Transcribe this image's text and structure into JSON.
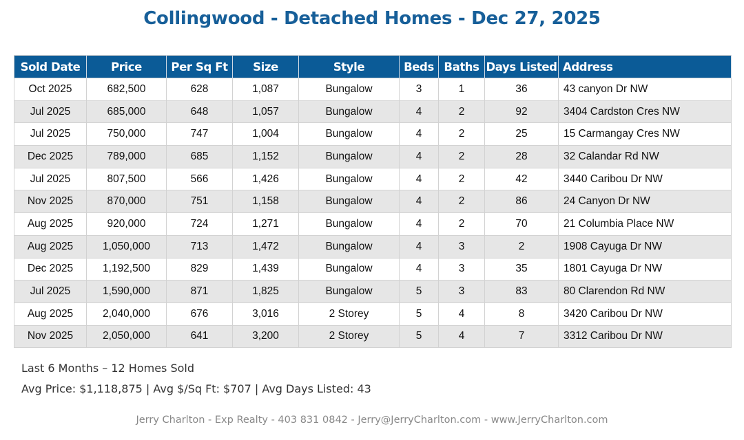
{
  "title": "Collingwood - Detached Homes - Dec 27, 2025",
  "colors": {
    "title": "#175f99",
    "header_bg": "#0b5b97",
    "alt_row": "#e6e6e6"
  },
  "table": {
    "headers": [
      "Sold Date",
      "Price",
      "Per Sq Ft",
      "Size",
      "Style",
      "Beds",
      "Baths",
      "Days Listed",
      "Address"
    ],
    "rows": [
      [
        "Oct 2025",
        "682,500",
        "628",
        "1,087",
        "Bungalow",
        "3",
        "1",
        "36",
        "43 canyon Dr NW"
      ],
      [
        "Jul 2025",
        "685,000",
        "648",
        "1,057",
        "Bungalow",
        "4",
        "2",
        "92",
        "3404 Cardston Cres NW"
      ],
      [
        "Jul 2025",
        "750,000",
        "747",
        "1,004",
        "Bungalow",
        "4",
        "2",
        "25",
        "15 Carmangay Cres NW"
      ],
      [
        "Dec 2025",
        "789,000",
        "685",
        "1,152",
        "Bungalow",
        "4",
        "2",
        "28",
        "32 Calandar Rd NW"
      ],
      [
        "Jul 2025",
        "807,500",
        "566",
        "1,426",
        "Bungalow",
        "4",
        "2",
        "42",
        "3440 Caribou Dr NW"
      ],
      [
        "Nov 2025",
        "870,000",
        "751",
        "1,158",
        "Bungalow",
        "4",
        "2",
        "86",
        "24 Canyon Dr NW"
      ],
      [
        "Aug 2025",
        "920,000",
        "724",
        "1,271",
        "Bungalow",
        "4",
        "2",
        "70",
        "21 Columbia Place NW"
      ],
      [
        "Aug 2025",
        "1,050,000",
        "713",
        "1,472",
        "Bungalow",
        "4",
        "3",
        "2",
        "1908 Cayuga Dr NW"
      ],
      [
        "Dec 2025",
        "1,192,500",
        "829",
        "1,439",
        "Bungalow",
        "4",
        "3",
        "35",
        "1801 Cayuga Dr NW"
      ],
      [
        "Jul 2025",
        "1,590,000",
        "871",
        "1,825",
        "Bungalow",
        "5",
        "3",
        "83",
        "80 Clarendon Rd NW"
      ],
      [
        "Aug 2025",
        "2,040,000",
        "676",
        "3,016",
        "2 Storey",
        "5",
        "4",
        "8",
        "3420 Caribou Dr NW"
      ],
      [
        "Nov 2025",
        "2,050,000",
        "641",
        "3,200",
        "2 Storey",
        "5",
        "4",
        "7",
        "3312 Caribou Dr NW"
      ]
    ]
  },
  "summary": {
    "line1": "Last 6 Months – 12 Homes Sold",
    "line2": "Avg Price: $1,118,875 | Avg $/Sq Ft: $707 | Avg Days Listed: 43"
  },
  "footer": "Jerry Charlton - Exp Realty - 403 831 0842 - Jerry@JerryCharlton.com - www.JerryCharlton.com"
}
